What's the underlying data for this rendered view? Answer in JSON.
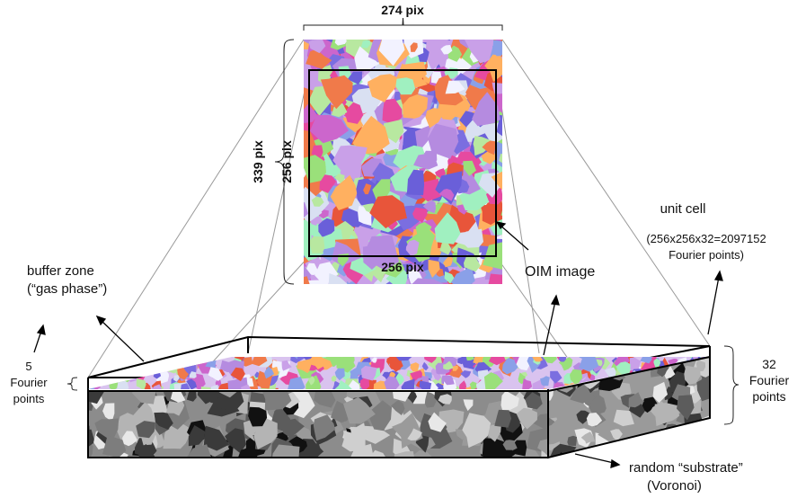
{
  "dims": {
    "width_label": "274 pix",
    "height_label": "339 pix",
    "inner_height_label": "256 pix",
    "inner_width_label": "256 pix"
  },
  "labels": {
    "unit_cell_title": "unit cell",
    "unit_cell_line1": "(256x256x32=2097152",
    "unit_cell_line2": "Fourier points)",
    "oim_image": "OIM image",
    "buffer_line1": "buffer zone",
    "buffer_line2": "(“gas phase”)",
    "five_line1": "5",
    "five_line2": "Fourier",
    "five_line3": "points",
    "thirtytwo_line1": "32",
    "thirtytwo_line2": "Fourier",
    "thirtytwo_line3": "points",
    "substrate_line1": "random “substrate”",
    "substrate_line2": "(Voronoi)"
  },
  "colors": {
    "grain_palette": [
      "#e8553a",
      "#b58be0",
      "#9ae07a",
      "#6a5fd9",
      "#c9a0e8",
      "#f07a4a",
      "#d9e0f2",
      "#e64aa0",
      "#b8e8a0",
      "#7b6ee0",
      "#f2f2ff",
      "#cc66cc",
      "#8aa0e8",
      "#ffb060",
      "#a0f0c0"
    ],
    "substrate_palette": [
      "#111111",
      "#3a3a3a",
      "#5c5c5c",
      "#7d7d7d",
      "#9a9a9a",
      "#b4b4b4",
      "#cfcfcf",
      "#e8e8e8"
    ]
  }
}
